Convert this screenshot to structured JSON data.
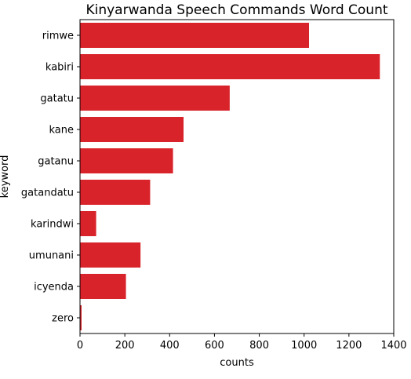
{
  "chart_data": {
    "type": "bar",
    "orientation": "horizontal",
    "title": "Kinyarwanda Speech Commands Word Count",
    "xlabel": "counts",
    "ylabel": "keyword",
    "categories": [
      "rimwe",
      "kabiri",
      "gatatu",
      "kane",
      "gatanu",
      "gatandatu",
      "karindwi",
      "umunani",
      "icyenda",
      "zero"
    ],
    "values": [
      1022,
      1338,
      668,
      462,
      415,
      313,
      72,
      270,
      205,
      7
    ],
    "xlim": [
      0,
      1400
    ],
    "xticks": [
      0,
      200,
      400,
      600,
      800,
      1000,
      1200,
      1400
    ],
    "bar_color": "#d9232a",
    "grid": false
  }
}
